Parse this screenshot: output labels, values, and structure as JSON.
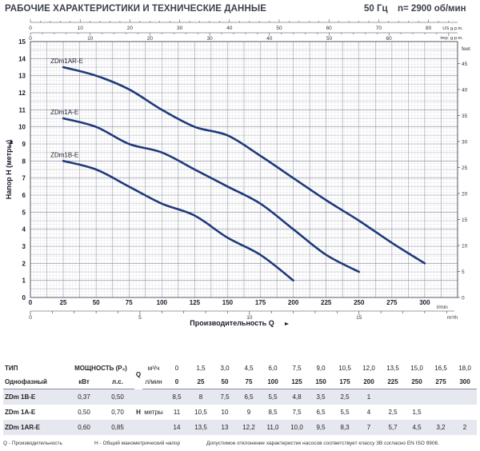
{
  "header": {
    "title": "РАБОЧИЕ ХАРАКТЕРИСТИКИ И ТЕХНИЧЕСКИЕ ДАННЫЕ",
    "freq": "50 Гц",
    "rpm": "n= 2900 об/мин"
  },
  "chart_data": {
    "type": "line",
    "title": "",
    "xlabel": "Производительность Q",
    "ylabel": "Напор H (метры)",
    "xlim": [
      0,
      325
    ],
    "ylim": [
      0,
      15
    ],
    "x_unit": "l/min",
    "x_secondary_unit": "m³/h",
    "y_secondary_unit": "feet",
    "top_us_unit": "US g.p.m.",
    "top_imp_unit": "imp. g.p.m.",
    "grid": true,
    "x_ticks": [
      "0",
      "25",
      "50",
      "75",
      "100",
      "125",
      "150",
      "175",
      "200",
      "225",
      "250",
      "275",
      "300"
    ],
    "y_ticks": [
      "0",
      "1",
      "2",
      "3",
      "4",
      "5",
      "6",
      "7",
      "8",
      "9",
      "10",
      "11",
      "12",
      "13",
      "14",
      "15"
    ],
    "feet_ticks": [
      "0",
      "5",
      "10",
      "15",
      "20",
      "25",
      "30",
      "35",
      "40",
      "45"
    ],
    "m3h_ticks": [
      "0",
      "5",
      "10",
      "15"
    ],
    "us_gpm_ticks": [
      "0",
      "10",
      "20",
      "30",
      "40",
      "50",
      "60",
      "70",
      "80"
    ],
    "imp_gpm_ticks": [
      "0",
      "10",
      "20",
      "30",
      "40",
      "50",
      "60"
    ],
    "series": [
      {
        "name": "ZDm1AR-E",
        "x": [
          25,
          50,
          75,
          100,
          125,
          150,
          175,
          200,
          225,
          250,
          275,
          300
        ],
        "y": [
          13.5,
          13.0,
          12.2,
          11.0,
          10.0,
          9.5,
          8.3,
          7.0,
          5.7,
          4.5,
          3.2,
          2.0
        ]
      },
      {
        "name": "ZDm1A-E",
        "x": [
          25,
          50,
          75,
          100,
          125,
          150,
          175,
          200,
          225,
          250
        ],
        "y": [
          10.5,
          10.0,
          9.0,
          8.5,
          7.5,
          6.5,
          5.5,
          4.0,
          2.5,
          1.5
        ]
      },
      {
        "name": "ZDm1B-E",
        "x": [
          25,
          50,
          75,
          100,
          125,
          150,
          175,
          200
        ],
        "y": [
          8.0,
          7.5,
          6.5,
          5.5,
          4.8,
          3.5,
          2.5,
          1.0
        ]
      }
    ]
  },
  "table": {
    "col_type": "ТИП",
    "col_power": "МОЩНОСТЬ (P₂)",
    "q_letter": "Q",
    "m3h_unit": "м³/ч",
    "lmin_unit": "л/мин",
    "phase_label": "Однофазный",
    "kw_label": "кВт",
    "hp_label": "л.с.",
    "h_label": "H",
    "h_unit": "метры",
    "m3h": [
      "0",
      "1,5",
      "3,0",
      "4,5",
      "6,0",
      "7,5",
      "9,0",
      "10,5",
      "12,0",
      "13,5",
      "15,0",
      "16,5",
      "18,0"
    ],
    "lmin": [
      "0",
      "25",
      "50",
      "75",
      "100",
      "125",
      "150",
      "175",
      "200",
      "225",
      "250",
      "275",
      "300"
    ],
    "rows": [
      {
        "type": "ZDm 1B-E",
        "kw": "0,37",
        "hp": "0,50",
        "h": [
          "8,5",
          "8",
          "7,5",
          "6,5",
          "5,5",
          "4,8",
          "3,5",
          "2,5",
          "1",
          "",
          "",
          "",
          ""
        ]
      },
      {
        "type": "ZDm 1A-E",
        "kw": "0,50",
        "hp": "0,70",
        "h": [
          "11",
          "10,5",
          "10",
          "9",
          "8,5",
          "7,5",
          "6,5",
          "5,5",
          "4",
          "2,5",
          "1,5",
          "",
          ""
        ]
      },
      {
        "type": "ZDm 1AR-E",
        "kw": "0,60",
        "hp": "0,85",
        "h": [
          "14",
          "13,5",
          "13",
          "12,2",
          "11,0",
          "10,0",
          "9,5",
          "8,3",
          "7",
          "5,7",
          "4,5",
          "3,2",
          "2"
        ]
      }
    ]
  },
  "footer": {
    "q_text": "Q - Производительность",
    "h_text": "H - Общий манометрический напор",
    "tolerance": "Допустимое отклонение характеристик насосов соответствует классу 3B согласно EN ISO 9906."
  }
}
